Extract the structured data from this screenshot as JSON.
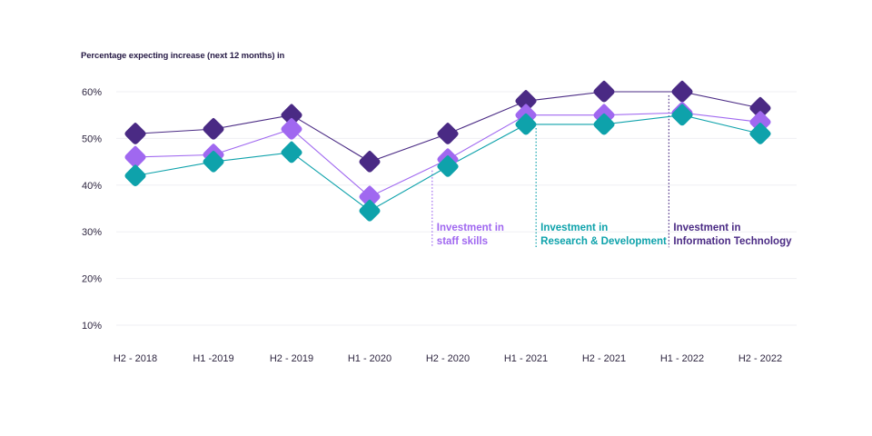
{
  "chart_data": {
    "type": "line",
    "title": "Percentage expecting increase (next 12 months) in",
    "xlabel": "",
    "ylabel": "",
    "categories": [
      "H2 - 2018",
      "H1 -2019",
      "H2 - 2019",
      "H1 - 2020",
      "H2 - 2020",
      "H1 - 2021",
      "H2 - 2021",
      "H1 - 2022",
      "H2 - 2022"
    ],
    "yticks": [
      10,
      20,
      30,
      40,
      50,
      60
    ],
    "ytick_labels": [
      "10%",
      "20%",
      "30%",
      "40%",
      "50%",
      "60%"
    ],
    "ylim": [
      10,
      60
    ],
    "grid": true,
    "marker": "rounded-diamond",
    "series": [
      {
        "name": "Investment in Information Technology",
        "color": "#4a2a84",
        "values": [
          51,
          52,
          55,
          45,
          51,
          58,
          60,
          60,
          56.5
        ]
      },
      {
        "name": "Investment in staff skills",
        "color": "#a068f0",
        "values": [
          46,
          46.5,
          52,
          37.5,
          45.5,
          55,
          55,
          55.5,
          53.5
        ]
      },
      {
        "name": "Investment in Research & Development",
        "color": "#0ea2ab",
        "values": [
          42,
          45,
          47,
          34.5,
          44,
          53,
          53,
          55,
          51
        ]
      }
    ],
    "annotations": [
      {
        "series": "Investment in staff skills",
        "lines": [
          "Investment in",
          "staff skills"
        ],
        "color": "#a068f0",
        "anchor_category": "H2 - 2020",
        "offset_fraction": -0.2
      },
      {
        "series": "Investment in Research & Development",
        "lines": [
          "Investment in",
          "Research & Development"
        ],
        "color": "#0ea2ab",
        "anchor_category": "H1 - 2021",
        "offset_fraction": 0.13
      },
      {
        "series": "Investment in Information Technology",
        "lines": [
          "Investment in",
          "Information Technology"
        ],
        "color": "#4a2a84",
        "anchor_category": "H1 - 2022",
        "offset_fraction": -0.17
      }
    ]
  }
}
